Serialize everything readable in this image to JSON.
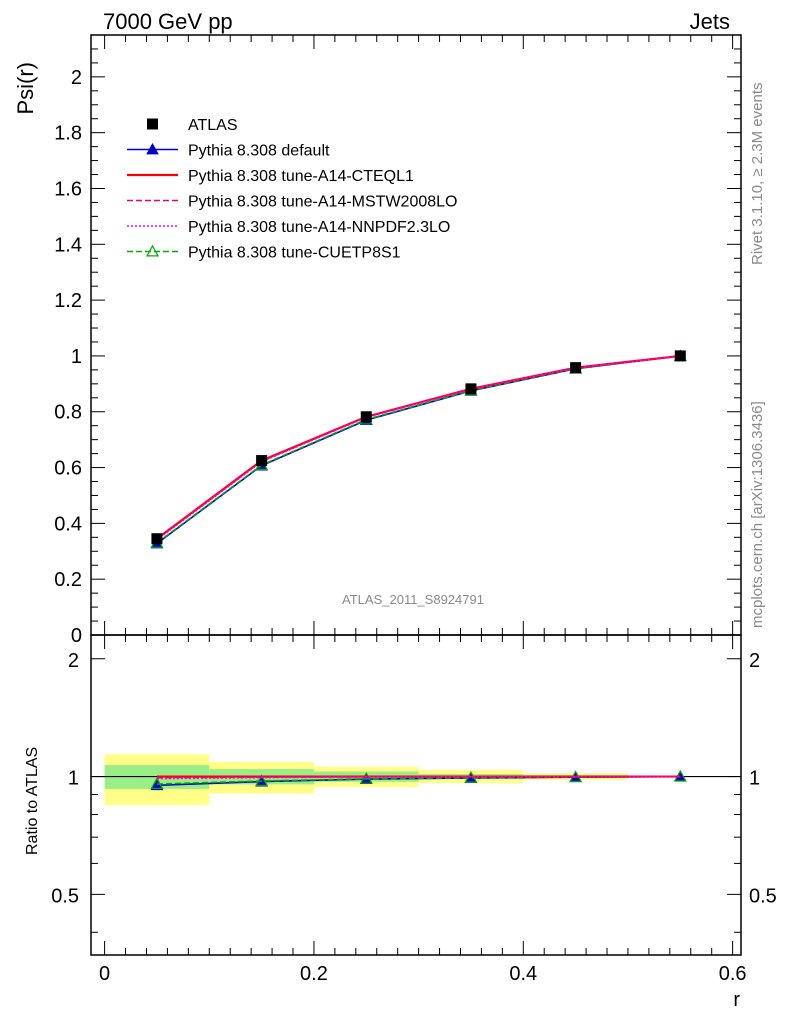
{
  "header": {
    "left_title": "7000 GeV pp",
    "right_title": "Jets"
  },
  "side_labels": {
    "rivet": "Rivet 3.1.10, ≥ 2.3M events",
    "source": "mcplots.cern.ch [arXiv:1306.3436]"
  },
  "analysis_label": "ATLAS_2011_S8924791",
  "chart_data": [
    {
      "type": "line",
      "panel": "main",
      "ylabel": "Psi(r)",
      "xlabel": "r",
      "xlim": [
        -0.013,
        0.608
      ],
      "ylim": [
        0,
        2.15
      ],
      "x_ticks": [
        "0",
        "0.2",
        "0.4",
        "0.6"
      ],
      "y_ticks": [
        "0",
        "0.2",
        "0.4",
        "0.6",
        "0.8",
        "1",
        "1.2",
        "1.4",
        "1.6",
        "1.8",
        "2"
      ],
      "x": [
        0.05,
        0.15,
        0.25,
        0.35,
        0.45,
        0.55
      ],
      "series": [
        {
          "name": "ATLAS",
          "style": "data",
          "color": "#000000",
          "values": [
            0.345,
            0.625,
            0.782,
            0.882,
            0.958,
            1.0
          ]
        },
        {
          "name": "Pythia 8.308 default",
          "style": "solid-triangle",
          "color": "#0000cc",
          "values": [
            0.328,
            0.607,
            0.77,
            0.875,
            0.954,
            1.0
          ]
        },
        {
          "name": "Pythia 8.308 tune-A14-CTEQL1",
          "style": "solid",
          "color": "#ff0000",
          "values": [
            0.345,
            0.625,
            0.782,
            0.882,
            0.958,
            1.0
          ]
        },
        {
          "name": "Pythia 8.308 tune-A14-MSTW2008LO",
          "style": "dashed",
          "color": "#e8006a",
          "values": [
            0.343,
            0.623,
            0.781,
            0.882,
            0.958,
            1.0
          ]
        },
        {
          "name": "Pythia 8.308 tune-A14-NNPDF2.3LO",
          "style": "dotted",
          "color": "#ff00cc",
          "values": [
            0.341,
            0.621,
            0.78,
            0.881,
            0.957,
            1.0
          ]
        },
        {
          "name": "Pythia 8.308 tune-CUETP8S1",
          "style": "dashed-open-triangle",
          "color": "#00aa00",
          "values": [
            0.33,
            0.609,
            0.772,
            0.876,
            0.955,
            1.0
          ]
        }
      ],
      "legend_position": "top-left",
      "grid": false
    },
    {
      "type": "line",
      "panel": "ratio",
      "ylabel": "Ratio to ATLAS",
      "xlabel": "r",
      "xlim": [
        -0.013,
        0.608
      ],
      "ylim": [
        0.35,
        2.3
      ],
      "x_ticks": [
        "0",
        "0.2",
        "0.4",
        "0.6"
      ],
      "y_ticks": [
        "0.5",
        "1",
        "2"
      ],
      "y_scale": "log",
      "bins": [
        [
          0.0,
          0.1
        ],
        [
          0.1,
          0.2
        ],
        [
          0.2,
          0.3
        ],
        [
          0.3,
          0.4
        ],
        [
          0.4,
          0.5
        ],
        [
          0.5,
          0.6
        ]
      ],
      "band_inner": [
        [
          0.93,
          1.07
        ],
        [
          0.955,
          1.045
        ],
        [
          0.97,
          1.03
        ],
        [
          0.985,
          1.015
        ],
        [
          0.992,
          1.008
        ],
        [
          1.0,
          1.0
        ]
      ],
      "band_outer": [
        [
          0.845,
          1.14
        ],
        [
          0.905,
          1.09
        ],
        [
          0.94,
          1.06
        ],
        [
          0.962,
          1.04
        ],
        [
          0.98,
          1.02
        ],
        [
          1.0,
          1.0
        ]
      ],
      "x": [
        0.05,
        0.15,
        0.25,
        0.35,
        0.45,
        0.55
      ],
      "series": [
        {
          "name": "Pythia 8.308 default",
          "style": "solid-triangle",
          "color": "#0000cc",
          "values": [
            0.95,
            0.971,
            0.985,
            0.992,
            0.996,
            1.0
          ]
        },
        {
          "name": "Pythia 8.308 tune-A14-CTEQL1",
          "style": "solid",
          "color": "#ff0000",
          "values": [
            1.0,
            1.0,
            1.0,
            1.0,
            1.0,
            1.0
          ]
        },
        {
          "name": "Pythia 8.308 tune-A14-MSTW2008LO",
          "style": "dashed",
          "color": "#e8006a",
          "values": [
            0.994,
            0.997,
            0.999,
            1.0,
            1.0,
            1.0
          ]
        },
        {
          "name": "Pythia 8.308 tune-A14-NNPDF2.3LO",
          "style": "dotted",
          "color": "#ff00cc",
          "values": [
            0.988,
            0.994,
            0.998,
            0.999,
            0.999,
            1.0
          ]
        },
        {
          "name": "Pythia 8.308 tune-CUETP8S1",
          "style": "dashed-open-triangle",
          "color": "#00aa00",
          "values": [
            0.957,
            0.974,
            0.987,
            0.993,
            0.997,
            1.0
          ]
        }
      ]
    }
  ]
}
